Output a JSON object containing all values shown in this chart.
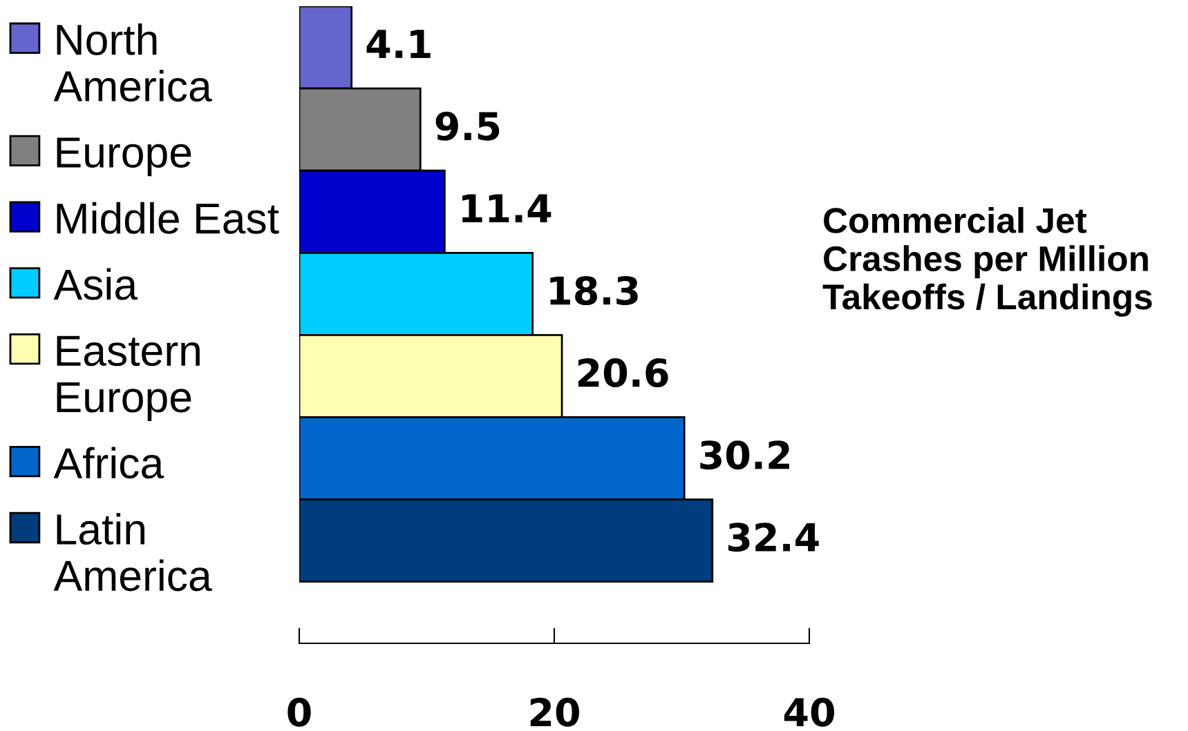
{
  "chart_data": {
    "type": "bar",
    "orientation": "horizontal",
    "stacked": true,
    "title": "Commercial Jet Crashes per Million Takeoffs / Landings",
    "categories": [
      null,
      null,
      null,
      null,
      null,
      null,
      null
    ],
    "series": [
      {
        "name": "North America",
        "color": "#6666cc",
        "values": [
          4.1,
          null,
          null,
          null,
          null,
          null,
          null
        ]
      },
      {
        "name": "Europe",
        "color": "#808080",
        "values": [
          null,
          9.5,
          null,
          null,
          null,
          null,
          null
        ]
      },
      {
        "name": "Middle East",
        "color": "#0000cc",
        "values": [
          null,
          null,
          11.4,
          null,
          null,
          null,
          null
        ]
      },
      {
        "name": "Asia",
        "color": "#00ccff",
        "values": [
          null,
          null,
          null,
          18.3,
          null,
          null,
          null
        ]
      },
      {
        "name": "Eastern Europe",
        "color": "#ffffb3",
        "values": [
          null,
          null,
          null,
          null,
          20.6,
          null,
          null
        ]
      },
      {
        "name": "Africa",
        "color": "#0066cc",
        "values": [
          null,
          null,
          null,
          null,
          null,
          30.2,
          null
        ]
      },
      {
        "name": "Latin America",
        "color": "#003d7d",
        "values": [
          null,
          null,
          null,
          null,
          null,
          null,
          32.4
        ]
      }
    ],
    "xlim": [
      0,
      40
    ],
    "xticks": [
      0,
      20,
      40
    ],
    "data_labels": true,
    "legend": "left",
    "tick_labels": "x"
  }
}
